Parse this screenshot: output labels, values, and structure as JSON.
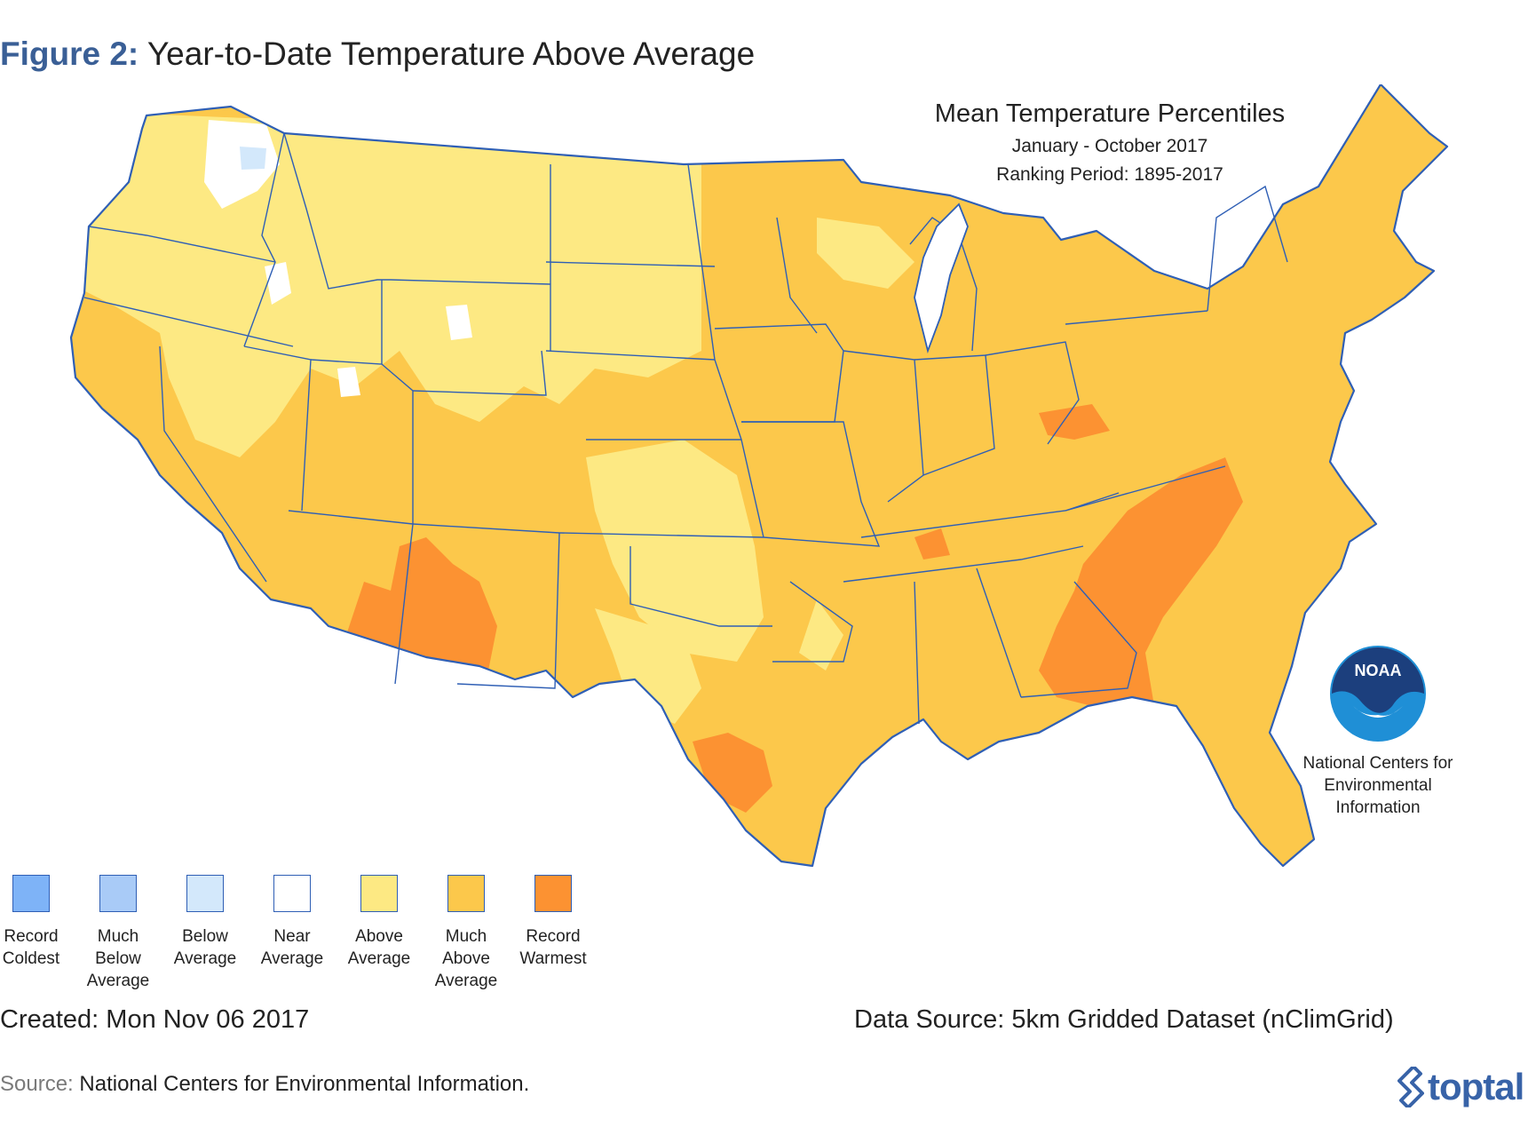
{
  "figure": {
    "label": "Figure 2:",
    "title": "Year-to-Date Temperature Above Average"
  },
  "map": {
    "title": "Mean Temperature Percentiles",
    "period": "January - October 2017",
    "ranking_period": "Ranking Period: 1895-2017",
    "region": "Contiguous United States",
    "border_color": "#2f5fb5"
  },
  "legend": {
    "items": [
      {
        "label": "Record Coldest",
        "color": "#7eb3f7"
      },
      {
        "label": "Much Below Average",
        "color": "#a9cbf7"
      },
      {
        "label": "Below Average",
        "color": "#d3e8fb"
      },
      {
        "label": "Near Average",
        "color": "#ffffff"
      },
      {
        "label": "Above Average",
        "color": "#fde983"
      },
      {
        "label": "Much Above Average",
        "color": "#fcc84b"
      },
      {
        "label": "Record Warmest",
        "color": "#fc9232"
      }
    ]
  },
  "noaa": {
    "logo_text": "NOAA",
    "org": "National Centers for Environmental Information"
  },
  "footer": {
    "created": "Created: Mon Nov 06 2017",
    "data_source": "Data Source: 5km Gridded Dataset (nClimGrid)",
    "source_label": "Source:",
    "source_value": "National Centers for Environmental Information.",
    "brand": "toptal"
  }
}
